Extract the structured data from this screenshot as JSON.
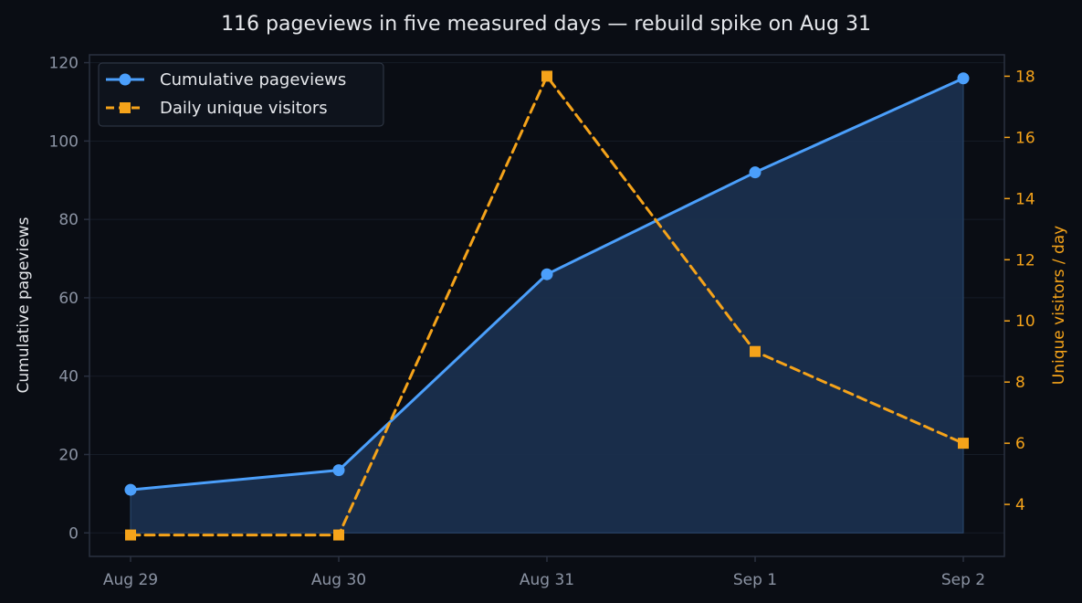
{
  "chart_data": {
    "type": "line",
    "title": "116 pageviews in five measured days — rebuild spike on Aug 31",
    "categories": [
      "Aug 29",
      "Aug 30",
      "Aug 31",
      "Sep 1",
      "Sep 2"
    ],
    "y_left": {
      "label": "Cumulative pageviews",
      "lim": [
        -6,
        122
      ],
      "ticks": [
        "0",
        "20",
        "40",
        "60",
        "80",
        "100",
        "120"
      ]
    },
    "y_right": {
      "label": "Unique visitors / day",
      "lim": [
        2.3,
        18.7
      ],
      "ticks": [
        "4",
        "6",
        "8",
        "10",
        "12",
        "14",
        "16",
        "18"
      ]
    },
    "series": [
      {
        "name": "Cumulative pageviews",
        "axis": "left",
        "style": "solid",
        "marker": "circle",
        "fill": true,
        "color": "#4b9ffb",
        "values": [
          11,
          16,
          66,
          92,
          116
        ]
      },
      {
        "name": "Daily unique visitors",
        "axis": "right",
        "style": "dashed",
        "marker": "square",
        "fill": false,
        "color": "#f5a31a",
        "values": [
          3,
          3,
          18,
          9,
          6
        ]
      }
    ],
    "legend": "top-left",
    "grid": true
  },
  "colors": {
    "background": "#0a0d14",
    "grid": "#161c27",
    "axis": "#2a3140",
    "fill": "#1b3150"
  }
}
